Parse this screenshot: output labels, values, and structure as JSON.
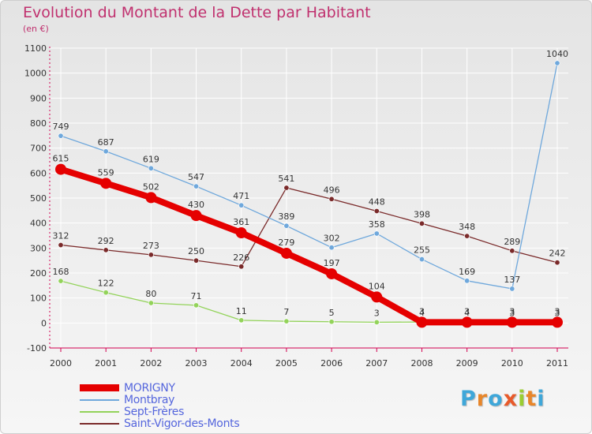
{
  "header": {
    "title": "Evolution du Montant de la Dette par Habitant",
    "subtitle": "(en €)"
  },
  "logo": {
    "text": "Proxiti",
    "colors": [
      "#3fa7d9",
      "#e8862a",
      "#3fa7d9",
      "#e85a2a",
      "#9acd32",
      "#e8862a",
      "#3fa7d9"
    ]
  },
  "chart_data": {
    "type": "line",
    "title": "Evolution du Montant de la Dette par Habitant",
    "subtitle": "(en €)",
    "categories": [
      "2000",
      "2001",
      "2002",
      "2003",
      "2004",
      "2005",
      "2006",
      "2007",
      "2008",
      "2009",
      "2010",
      "2011"
    ],
    "ylim": [
      -100,
      1100
    ],
    "yticks": [
      -100,
      0,
      100,
      200,
      300,
      400,
      500,
      600,
      700,
      800,
      900,
      1000,
      1100
    ],
    "grid": true,
    "legend_position": "bottom-left",
    "series": [
      {
        "name": "MORIGNY",
        "color": "#e50000",
        "values": [
          615,
          559,
          502,
          430,
          361,
          279,
          197,
          104,
          3,
          3,
          3,
          3
        ]
      },
      {
        "name": "Montbray",
        "color": "#6fa8dc",
        "values": [
          749,
          687,
          619,
          547,
          471,
          389,
          302,
          358,
          255,
          169,
          137,
          1040
        ]
      },
      {
        "name": "Sept-Frères",
        "color": "#93d35a",
        "values": [
          168,
          122,
          80,
          71,
          11,
          7,
          5,
          3,
          4,
          4,
          3,
          3
        ]
      },
      {
        "name": "Saint-Vigor-des-Monts",
        "color": "#7a2a2a",
        "values": [
          312,
          292,
          273,
          250,
          226,
          541,
          496,
          448,
          398,
          348,
          289,
          242
        ]
      }
    ]
  }
}
